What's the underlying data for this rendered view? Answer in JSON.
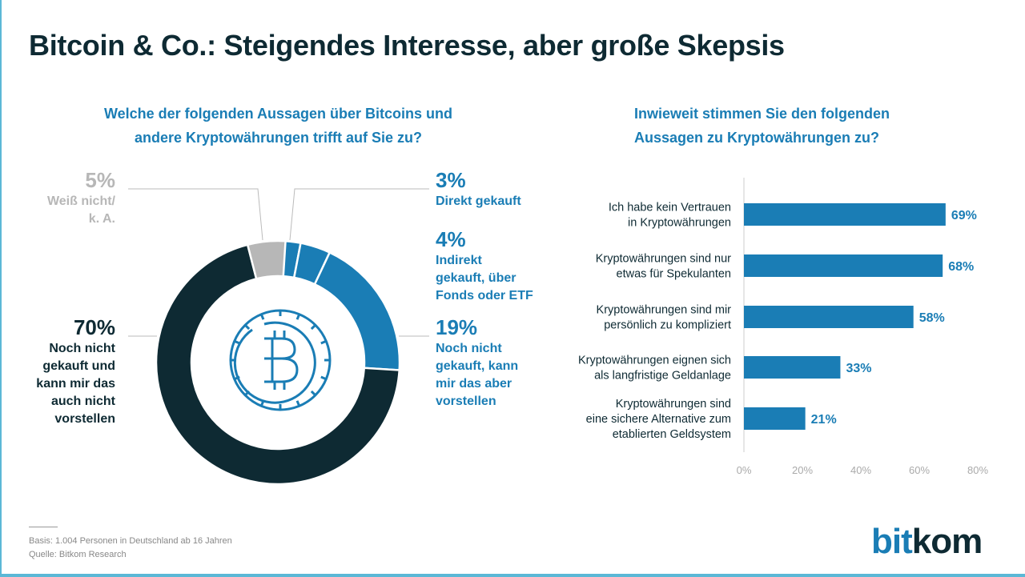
{
  "title": "Bitcoin & Co.: Steigendes Interesse, aber große Skepsis",
  "left_question_line1": "Welche der folgenden Aussagen über Bitcoins und",
  "left_question_line2": "andere Kryptowährungen trifft auf Sie zu?",
  "right_question_line1": "Inwieweit stimmen Sie den folgenden",
  "right_question_line2": "Aussagen zu Kryptowährungen zu?",
  "footer": {
    "basis": "Basis: 1.004 Personen in Deutschland ab 16 Jahren",
    "source": "Quelle: Bitkom Research"
  },
  "logo": {
    "part1": "bit",
    "part2": "kom"
  },
  "chart_data": [
    {
      "type": "pie",
      "subtype": "donut",
      "title": "Welche der folgenden Aussagen über Bitcoins und andere Kryptowährungen trifft auf Sie zu?",
      "slices": [
        {
          "label": "Direkt gekauft",
          "value": 3,
          "pct": "3%",
          "color": "#1a7db5",
          "lines": [
            "Direkt gekauft"
          ]
        },
        {
          "label": "Indirekt gekauft, über Fonds oder ETF",
          "value": 4,
          "pct": "4%",
          "color": "#1a7db5",
          "lines": [
            "Indirekt",
            "gekauft, über",
            "Fonds oder ETF"
          ]
        },
        {
          "label": "Noch nicht gekauft, kann mir das aber vorstellen",
          "value": 19,
          "pct": "19%",
          "color": "#1a7db5",
          "lines": [
            "Noch nicht",
            "gekauft, kann",
            "mir das aber",
            "vorstellen"
          ]
        },
        {
          "label": "Noch nicht gekauft und kann mir das auch nicht vorstellen",
          "value": 70,
          "pct": "70%",
          "color": "#0e2a33",
          "lines": [
            "Noch nicht",
            "gekauft und",
            "kann mir das",
            "auch nicht",
            "vorstellen"
          ]
        },
        {
          "label": "Weiß nicht/ k. A.",
          "value": 5,
          "pct": "5%",
          "color": "#b7b7b7",
          "lines": [
            "Weiß nicht/",
            "k. A."
          ]
        }
      ]
    },
    {
      "type": "bar",
      "orientation": "horizontal",
      "title": "Inwieweit stimmen Sie den folgenden Aussagen zu Kryptowährungen zu?",
      "categories": [
        [
          "Ich habe kein Vertrauen",
          "in Kryptowährungen"
        ],
        [
          "Kryptowährungen sind nur",
          "etwas für Spekulanten"
        ],
        [
          "Kryptowährungen sind mir",
          "persönlich zu kompliziert"
        ],
        [
          "Kryptowährungen eignen sich",
          "als langfristige Geldanlage"
        ],
        [
          "Kryptowährungen sind",
          "eine sichere Alternative zum",
          "etablierten Geldsystem"
        ]
      ],
      "values": [
        69,
        68,
        58,
        33,
        21
      ],
      "value_labels": [
        "69%",
        "68%",
        "58%",
        "33%",
        "21%"
      ],
      "xlim": [
        0,
        80
      ],
      "xticks": [
        "0%",
        "20%",
        "40%",
        "60%",
        "80%"
      ],
      "bar_color": "#1a7db5"
    }
  ]
}
